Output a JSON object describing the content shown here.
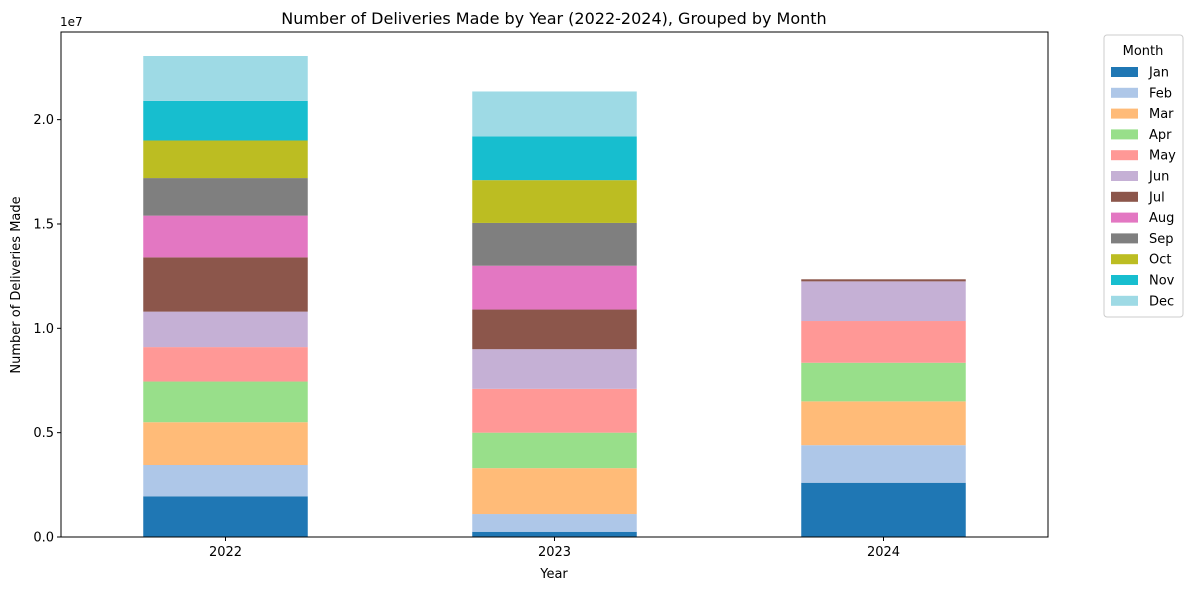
{
  "chart_data": {
    "type": "bar",
    "stacked": true,
    "title": "Number of Deliveries Made by Year (2022-2024), Grouped by Month",
    "xlabel": "Year",
    "ylabel": "Number of Deliveries Made",
    "y_offset_label": "1e7",
    "ylim": [
      0,
      2.42
    ],
    "y_ticks": [
      0,
      0.5,
      1.0,
      1.5,
      2.0
    ],
    "y_tick_labels": [
      "0.0",
      "0.5",
      "1.0",
      "1.5",
      "2.0"
    ],
    "categories": [
      "2022",
      "2023",
      "2024"
    ],
    "legend": {
      "title": "Month",
      "placement": "outside-right"
    },
    "grid": false,
    "series": [
      {
        "name": "Jan",
        "color": "#1f77b4",
        "values": [
          0.195,
          0.025,
          0.26
        ]
      },
      {
        "name": "Feb",
        "color": "#aec7e8",
        "values": [
          0.15,
          0.085,
          0.18
        ]
      },
      {
        "name": "Mar",
        "color": "#ffbb78",
        "values": [
          0.205,
          0.22,
          0.21
        ]
      },
      {
        "name": "Apr",
        "color": "#98df8a",
        "values": [
          0.195,
          0.17,
          0.185
        ]
      },
      {
        "name": "May",
        "color": "#ff9896",
        "values": [
          0.165,
          0.21,
          0.2
        ]
      },
      {
        "name": "Jun",
        "color": "#c5b0d5",
        "values": [
          0.17,
          0.19,
          0.19
        ]
      },
      {
        "name": "Jul",
        "color": "#8c564b",
        "values": [
          0.26,
          0.19,
          0.01
        ]
      },
      {
        "name": "Aug",
        "color": "#e377c2",
        "values": [
          0.2,
          0.21,
          0
        ]
      },
      {
        "name": "Sep",
        "color": "#7f7f7f",
        "values": [
          0.18,
          0.205,
          0
        ]
      },
      {
        "name": "Oct",
        "color": "#bcbd22",
        "values": [
          0.18,
          0.205,
          0
        ]
      },
      {
        "name": "Nov",
        "color": "#17becf",
        "values": [
          0.19,
          0.21,
          0
        ]
      },
      {
        "name": "Dec",
        "color": "#9edae5",
        "values": [
          0.215,
          0.215,
          0
        ]
      }
    ]
  }
}
